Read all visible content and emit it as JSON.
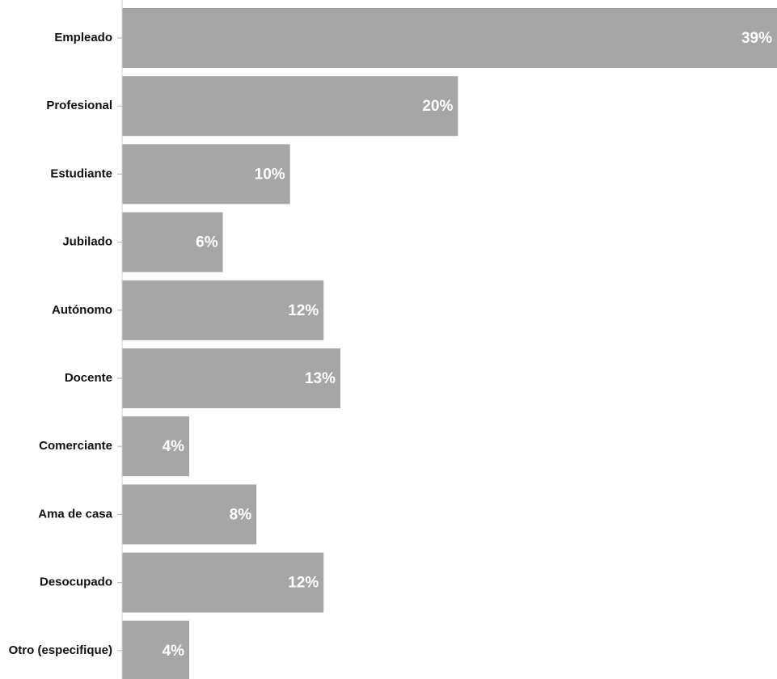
{
  "chart_data": {
    "type": "bar",
    "orientation": "horizontal",
    "title": "",
    "xlabel": "",
    "ylabel": "",
    "categories": [
      "Empleado",
      "Profesional",
      "Estudiante",
      "Jubilado",
      "Autónomo",
      "Docente",
      "Comerciante",
      "Ama de casa",
      "Desocupado",
      "Otro (especifique)"
    ],
    "values": [
      39,
      20,
      10,
      6,
      12,
      13,
      4,
      8,
      12,
      4
    ],
    "value_labels": [
      "39%",
      "20%",
      "10%",
      "6%",
      "12%",
      "13%",
      "4%",
      "8%",
      "12%",
      "4%"
    ],
    "unit": "%",
    "xlim": [
      0,
      39
    ],
    "grid": false,
    "legend": "none",
    "bar_color": "#a6a6a6",
    "value_label_color": "#ffffff",
    "category_label_color": "#111111"
  }
}
